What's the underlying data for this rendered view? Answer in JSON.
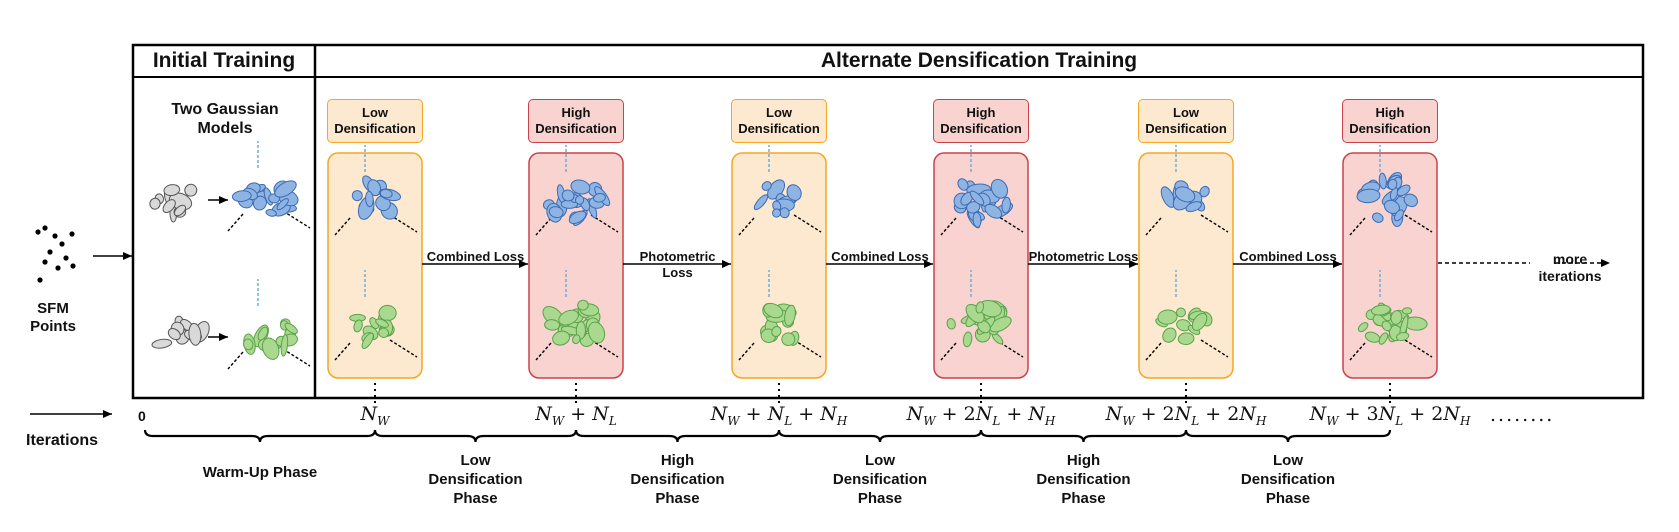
{
  "headers": {
    "initial_training": "Initial Training",
    "alternate_training": "Alternate Densification Training"
  },
  "initial": {
    "models_label": "Two Gaussian Models",
    "sfm_label": "SFM Points"
  },
  "stages": [
    {
      "tag": "Low Densification",
      "kind": "low"
    },
    {
      "tag": "High Densification",
      "kind": "high"
    },
    {
      "tag": "Low Densification",
      "kind": "low"
    },
    {
      "tag": "High Densification",
      "kind": "high"
    },
    {
      "tag": "Low Densification",
      "kind": "low"
    },
    {
      "tag": "High Densification",
      "kind": "high"
    }
  ],
  "losses": [
    "Combined Loss",
    "Photometric Loss",
    "Combined Loss",
    "Photometric Loss",
    "Combined Loss"
  ],
  "more_label": "more iterations",
  "timeline": {
    "label": "Iterations",
    "start": "0",
    "ellipsis": "........",
    "ticks": [
      {
        "base": "N",
        "sub": "W",
        "rest": []
      },
      {
        "base": "N",
        "sub": "W",
        "rest": [
          {
            "op": " + ",
            "coef": "",
            "base": "N",
            "sub": "L"
          }
        ]
      },
      {
        "base": "N",
        "sub": "W",
        "rest": [
          {
            "op": " + ",
            "coef": "",
            "base": "N",
            "sub": "L"
          },
          {
            "op": " + ",
            "coef": "",
            "base": "N",
            "sub": "H"
          }
        ]
      },
      {
        "base": "N",
        "sub": "W",
        "rest": [
          {
            "op": " + ",
            "coef": "2",
            "base": "N",
            "sub": "L"
          },
          {
            "op": " + ",
            "coef": "",
            "base": "N",
            "sub": "H"
          }
        ]
      },
      {
        "base": "N",
        "sub": "W",
        "rest": [
          {
            "op": " + ",
            "coef": "2",
            "base": "N",
            "sub": "L"
          },
          {
            "op": " + ",
            "coef": "2",
            "base": "N",
            "sub": "H"
          }
        ]
      },
      {
        "base": "N",
        "sub": "W",
        "rest": [
          {
            "op": " + ",
            "coef": "3",
            "base": "N",
            "sub": "L"
          },
          {
            "op": " + ",
            "coef": "2",
            "base": "N",
            "sub": "H"
          }
        ]
      }
    ],
    "phases": [
      "Warm-Up Phase",
      "Low Densification Phase",
      "High Densification Phase",
      "Low Densification Phase",
      "High Densification Phase",
      "Low Densification Phase"
    ]
  },
  "colors": {
    "blue_fill": "#8eb4e3",
    "blue_stroke": "#3d6bb3",
    "green_fill": "#a9d98f",
    "green_stroke": "#5ca14a",
    "gray_fill": "#d9d9d9",
    "gray_stroke": "#555555",
    "low_fill": "#fde9cf",
    "low_stroke": "#f5a623",
    "high_fill": "#f8d3d0",
    "high_stroke": "#c9434a"
  }
}
